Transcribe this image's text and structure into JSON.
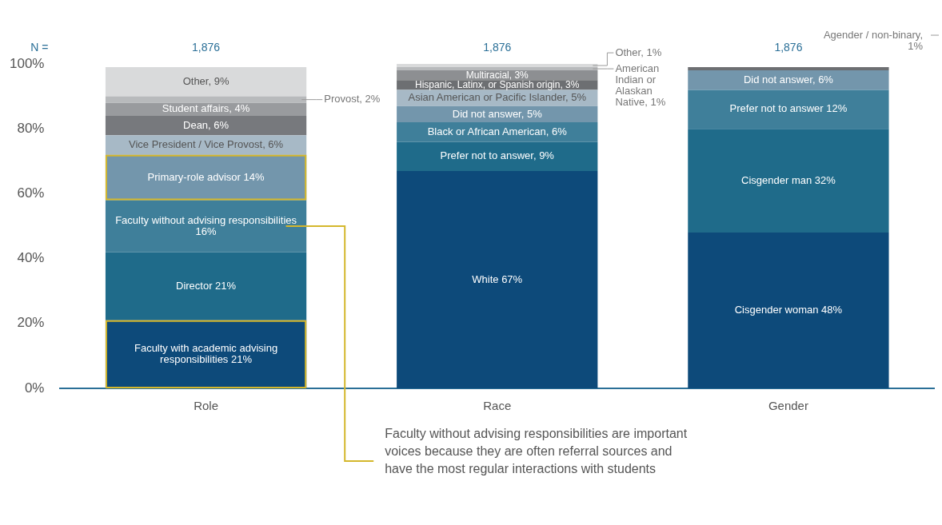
{
  "chart_data": {
    "type": "bar",
    "stacked": true,
    "categories": [
      "Role",
      "Race",
      "Gender"
    ],
    "ylim": [
      0,
      100
    ],
    "yticks": [
      {
        "value": 0,
        "label": "0%"
      },
      {
        "value": 20,
        "label": "20%"
      },
      {
        "value": 40,
        "label": "40%"
      },
      {
        "value": 60,
        "label": "60%"
      },
      {
        "value": 80,
        "label": "80%"
      },
      {
        "value": 100,
        "label": "100%"
      }
    ],
    "grid": false,
    "legend": false,
    "annotations": [
      "N =",
      "1,876",
      "1,876",
      "1,876",
      "Faculty without advising responsibilities are important voices because they are often referral sources and have the most regular interactions with students"
    ],
    "series": [
      {
        "color": "#0d4a7a",
        "values": [
          21,
          67,
          48
        ],
        "value_labels": [
          "Faculty with academic advising responsibilities 21%",
          "White 67%",
          "Cisgender woman 48%"
        ]
      },
      {
        "color": "#1f6b8a",
        "values": [
          21,
          9,
          32
        ],
        "value_labels": [
          "Director 21%",
          "Prefer not to answer, 9%",
          "Cisgender man 32%"
        ]
      },
      {
        "color": "#3f7f9a",
        "values": [
          16,
          6,
          12
        ],
        "value_labels": [
          "Faculty without advising responsibilities 16%",
          "Black or African American, 6%",
          "Prefer not to answer 12%"
        ]
      },
      {
        "color": "#7396ac",
        "values": [
          14,
          5,
          6
        ],
        "value_labels": [
          "Primary-role advisor 14%",
          "Did not answer, 5%",
          "Did not answer, 6%"
        ]
      },
      {
        "color": "#a7b9c6",
        "values": [
          6,
          5,
          null
        ],
        "value_labels": [
          "Vice President / Vice Provost, 6%",
          "Asian American or Pacific Islander, 5%",
          null
        ]
      },
      {
        "color": "#77797d",
        "values": [
          6,
          null,
          null
        ],
        "value_labels": [
          "Dean, 6%",
          null,
          null
        ]
      },
      {
        "color": "#999b9e",
        "values": [
          4,
          null,
          null
        ],
        "value_labels": [
          "Student affairs, 4%",
          null,
          null
        ]
      },
      {
        "color": "#6d6f72",
        "values": [
          null,
          3,
          1
        ],
        "value_labels": [
          null,
          "Hispanic, Latinx, or Spanish origin, 3%",
          "Agender / non-binary, 1%"
        ]
      },
      {
        "color": "#8d8f92",
        "values": [
          null,
          3,
          null
        ],
        "value_labels": [
          null,
          "Multiracial, 3%",
          null
        ]
      },
      {
        "color": "#b8babc",
        "values": [
          2,
          1,
          null
        ],
        "value_labels": [
          "Provost, 2%",
          "American Indian or Alaskan Native, 1%",
          null
        ]
      },
      {
        "color": "#d9dadb",
        "values": [
          9,
          1,
          null
        ],
        "value_labels": [
          "Other, 9%",
          "Other, 1%",
          null
        ]
      }
    ]
  }
}
